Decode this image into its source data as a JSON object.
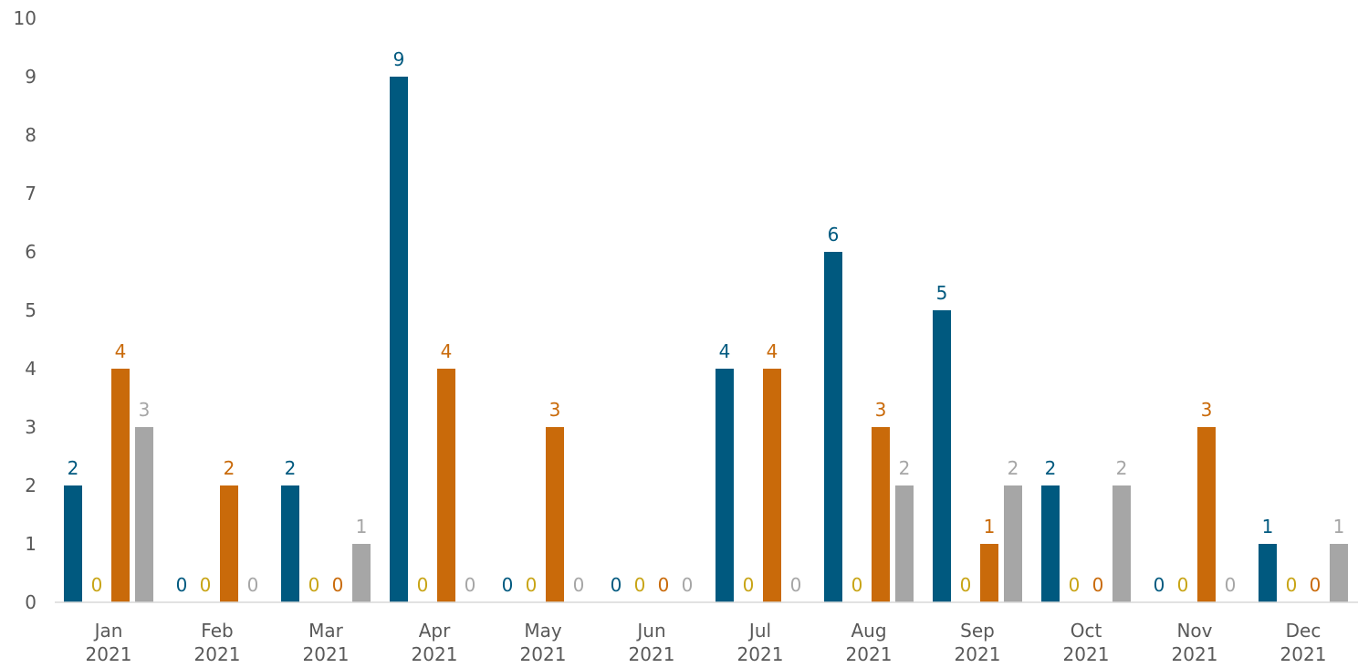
{
  "chart_data": {
    "type": "bar",
    "title": "",
    "xlabel": "",
    "ylabel": "",
    "ylim": [
      0,
      10
    ],
    "yticks": [
      0,
      1,
      2,
      3,
      4,
      5,
      6,
      7,
      8,
      9,
      10
    ],
    "grid": false,
    "legend": "none",
    "categories": [
      [
        "Jan",
        "2021"
      ],
      [
        "Feb",
        "2021"
      ],
      [
        "Mar",
        "2021"
      ],
      [
        "Apr",
        "2021"
      ],
      [
        "May",
        "2021"
      ],
      [
        "Jun",
        "2021"
      ],
      [
        "Jul",
        "2021"
      ],
      [
        "Aug",
        "2021"
      ],
      [
        "Sep",
        "2021"
      ],
      [
        "Oct",
        "2021"
      ],
      [
        "Nov",
        "2021"
      ],
      [
        "Dec",
        "2021"
      ]
    ],
    "series": [
      {
        "color": "#00597F",
        "values": [
          2,
          0,
          2,
          9,
          0,
          0,
          4,
          6,
          5,
          2,
          0,
          1
        ]
      },
      {
        "color": "#C8A415",
        "values": [
          0,
          0,
          0,
          0,
          0,
          0,
          0,
          0,
          0,
          0,
          0,
          0
        ]
      },
      {
        "color": "#C96A0A",
        "values": [
          4,
          2,
          0,
          4,
          3,
          0,
          4,
          3,
          1,
          0,
          3,
          0
        ]
      },
      {
        "color": "#A6A6A6",
        "values": [
          3,
          0,
          1,
          0,
          0,
          0,
          0,
          2,
          2,
          2,
          0,
          1
        ]
      }
    ]
  }
}
